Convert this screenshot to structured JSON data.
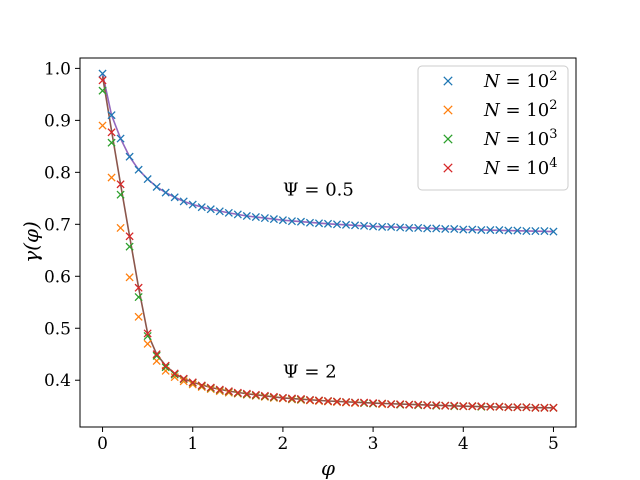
{
  "chart_data": {
    "type": "line",
    "xlabel": "φ",
    "ylabel": "γ(φ)",
    "xlim": [
      -0.25,
      5.25
    ],
    "ylim": [
      0.31,
      1.02
    ],
    "xticks": [
      "0",
      "1",
      "2",
      "3",
      "4",
      "5"
    ],
    "yticks": [
      "0.4",
      "0.5",
      "0.6",
      "0.7",
      "0.8",
      "0.9",
      "1.0"
    ],
    "legend_position": "top-right",
    "annotations": [
      {
        "text": "Ψ = 0.5",
        "x": 2.0,
        "y": 0.755
      },
      {
        "text": "Ψ = 2",
        "x": 2.0,
        "y": 0.405
      }
    ],
    "series": [
      {
        "name": "N = 10^2",
        "color": "#1f77b4",
        "marker": "x",
        "x": [
          0.0,
          0.1,
          0.2,
          0.3,
          0.4,
          0.5,
          0.6,
          0.7,
          0.8,
          0.9,
          1.0,
          1.1,
          1.2,
          1.3,
          1.4,
          1.5,
          1.6,
          1.7,
          1.8,
          1.9,
          2.0,
          2.1,
          2.2,
          2.3,
          2.4,
          2.5,
          2.6,
          2.7,
          2.8,
          2.9,
          3.0,
          3.1,
          3.2,
          3.3,
          3.4,
          3.5,
          3.6,
          3.7,
          3.8,
          3.9,
          4.0,
          4.1,
          4.2,
          4.3,
          4.4,
          4.5,
          4.6,
          4.7,
          4.8,
          4.9,
          5.0
        ],
        "y": [
          0.99,
          0.91,
          0.865,
          0.83,
          0.805,
          0.787,
          0.772,
          0.761,
          0.752,
          0.744,
          0.738,
          0.733,
          0.729,
          0.725,
          0.722,
          0.719,
          0.716,
          0.714,
          0.712,
          0.71,
          0.708,
          0.706,
          0.705,
          0.703,
          0.702,
          0.701,
          0.7,
          0.699,
          0.698,
          0.697,
          0.696,
          0.695,
          0.695,
          0.694,
          0.693,
          0.693,
          0.692,
          0.692,
          0.691,
          0.691,
          0.69,
          0.69,
          0.689,
          0.689,
          0.689,
          0.688,
          0.688,
          0.687,
          0.687,
          0.687,
          0.686
        ]
      },
      {
        "name": "N = 10^2",
        "color": "#ff7f0e",
        "marker": "x",
        "x": [
          0.0,
          0.1,
          0.2,
          0.3,
          0.4,
          0.5,
          0.6,
          0.7,
          0.8,
          0.9,
          1.0,
          1.1,
          1.2,
          1.3,
          1.4,
          1.5,
          1.6,
          1.7,
          1.8,
          1.9,
          2.0,
          2.1,
          2.2,
          2.3,
          2.4,
          2.5,
          2.6,
          2.7,
          2.8,
          2.9,
          3.0,
          3.1,
          3.2,
          3.3,
          3.4,
          3.5,
          3.6,
          3.7,
          3.8,
          3.9,
          4.0,
          4.1,
          4.2,
          4.3,
          4.4,
          4.5,
          4.6,
          4.7,
          4.8,
          4.9,
          5.0
        ],
        "y": [
          0.89,
          0.79,
          0.693,
          0.598,
          0.522,
          0.47,
          0.437,
          0.418,
          0.406,
          0.398,
          0.392,
          0.387,
          0.383,
          0.379,
          0.376,
          0.374,
          0.372,
          0.37,
          0.368,
          0.366,
          0.365,
          0.363,
          0.362,
          0.361,
          0.36,
          0.359,
          0.358,
          0.357,
          0.356,
          0.356,
          0.355,
          0.354,
          0.354,
          0.353,
          0.353,
          0.352,
          0.352,
          0.351,
          0.351,
          0.35,
          0.35,
          0.35,
          0.349,
          0.349,
          0.349,
          0.348,
          0.348,
          0.348,
          0.347,
          0.347,
          0.347
        ]
      },
      {
        "name": "N = 10^3",
        "color": "#2ca02c",
        "marker": "x",
        "x": [
          0.0,
          0.1,
          0.2,
          0.3,
          0.4,
          0.5,
          0.6,
          0.7,
          0.8,
          0.9,
          1.0,
          1.1,
          1.2,
          1.3,
          1.4,
          1.5,
          1.6,
          1.7,
          1.8,
          1.9,
          2.0,
          2.1,
          2.2,
          2.3,
          2.4,
          2.5,
          2.6,
          2.7,
          2.8,
          2.9,
          3.0,
          3.1,
          3.2,
          3.3,
          3.4,
          3.5,
          3.6,
          3.7,
          3.8,
          3.9,
          4.0,
          4.1,
          4.2,
          4.3,
          4.4,
          4.5,
          4.6,
          4.7,
          4.8,
          4.9,
          5.0
        ],
        "y": [
          0.957,
          0.857,
          0.757,
          0.657,
          0.56,
          0.485,
          0.447,
          0.425,
          0.411,
          0.402,
          0.395,
          0.389,
          0.385,
          0.381,
          0.378,
          0.375,
          0.373,
          0.371,
          0.369,
          0.367,
          0.366,
          0.364,
          0.363,
          0.362,
          0.361,
          0.36,
          0.359,
          0.358,
          0.357,
          0.356,
          0.355,
          0.355,
          0.354,
          0.353,
          0.353,
          0.352,
          0.352,
          0.351,
          0.351,
          0.35,
          0.35,
          0.35,
          0.349,
          0.349,
          0.349,
          0.348,
          0.348,
          0.348,
          0.347,
          0.347,
          0.347
        ]
      },
      {
        "name": "N = 10^4",
        "color": "#d62728",
        "marker": "x",
        "x": [
          0.0,
          0.1,
          0.2,
          0.3,
          0.4,
          0.5,
          0.6,
          0.7,
          0.8,
          0.9,
          1.0,
          1.1,
          1.2,
          1.3,
          1.4,
          1.5,
          1.6,
          1.7,
          1.8,
          1.9,
          2.0,
          2.1,
          2.2,
          2.3,
          2.4,
          2.5,
          2.6,
          2.7,
          2.8,
          2.9,
          3.0,
          3.1,
          3.2,
          3.3,
          3.4,
          3.5,
          3.6,
          3.7,
          3.8,
          3.9,
          4.0,
          4.1,
          4.2,
          4.3,
          4.4,
          4.5,
          4.6,
          4.7,
          4.8,
          4.9,
          5.0
        ],
        "y": [
          0.977,
          0.877,
          0.777,
          0.677,
          0.578,
          0.49,
          0.45,
          0.428,
          0.413,
          0.403,
          0.396,
          0.39,
          0.386,
          0.382,
          0.379,
          0.376,
          0.374,
          0.372,
          0.37,
          0.368,
          0.366,
          0.365,
          0.364,
          0.362,
          0.361,
          0.36,
          0.359,
          0.358,
          0.357,
          0.357,
          0.356,
          0.355,
          0.354,
          0.354,
          0.353,
          0.353,
          0.352,
          0.352,
          0.351,
          0.351,
          0.35,
          0.35,
          0.35,
          0.349,
          0.349,
          0.348,
          0.348,
          0.348,
          0.347,
          0.347,
          0.347
        ]
      }
    ],
    "curves": [
      {
        "label_ref": "Ψ = 0.5",
        "color": "#9467bd",
        "x": [
          0.0,
          0.1,
          0.2,
          0.3,
          0.4,
          0.5,
          0.6,
          0.7,
          0.8,
          0.9,
          1.0,
          1.2,
          1.4,
          1.6,
          1.8,
          2.0,
          2.5,
          3.0,
          3.5,
          4.0,
          4.5,
          5.0
        ],
        "y": [
          0.99,
          0.91,
          0.865,
          0.83,
          0.805,
          0.787,
          0.772,
          0.761,
          0.752,
          0.744,
          0.738,
          0.729,
          0.722,
          0.716,
          0.712,
          0.708,
          0.701,
          0.696,
          0.693,
          0.69,
          0.688,
          0.686
        ]
      },
      {
        "label_ref": "Ψ = 2",
        "color": "#8c564b",
        "x": [
          0.0,
          0.1,
          0.2,
          0.3,
          0.4,
          0.5,
          0.6,
          0.7,
          0.8,
          0.9,
          1.0,
          1.2,
          1.4,
          1.6,
          1.8,
          2.0,
          2.5,
          3.0,
          3.5,
          4.0,
          4.5,
          5.0
        ],
        "y": [
          0.985,
          0.88,
          0.777,
          0.677,
          0.578,
          0.49,
          0.45,
          0.428,
          0.413,
          0.403,
          0.396,
          0.386,
          0.379,
          0.374,
          0.37,
          0.366,
          0.36,
          0.356,
          0.353,
          0.35,
          0.348,
          0.347
        ]
      }
    ]
  }
}
